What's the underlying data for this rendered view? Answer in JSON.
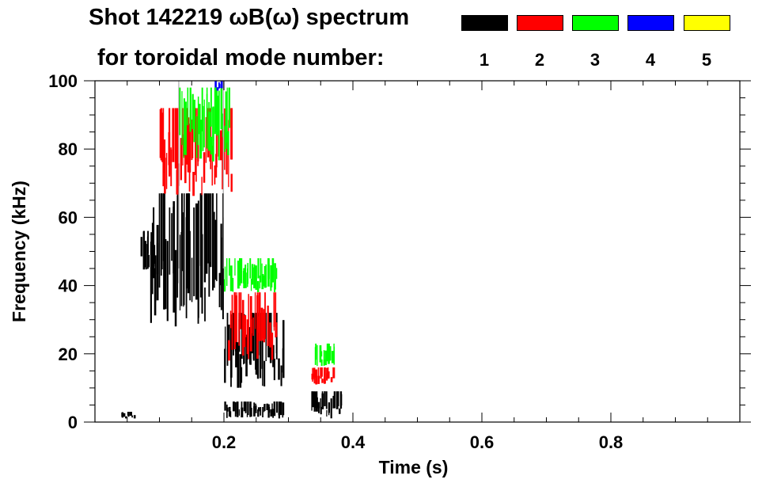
{
  "title": {
    "line1": "Shot 142219 ωB(ω) spectrum",
    "line2": "for toroidal mode number:"
  },
  "legend": [
    {
      "label": "1",
      "color": "#000000"
    },
    {
      "label": "2",
      "color": "#ff0000"
    },
    {
      "label": "3",
      "color": "#00ff00"
    },
    {
      "label": "4",
      "color": "#0000ff"
    },
    {
      "label": "5",
      "color": "#ffff00"
    }
  ],
  "chart_data": {
    "type": "heatmap",
    "title": "Shot 142219 ωB(ω) spectrum",
    "xlabel": "Time (s)",
    "ylabel": "Frequency (kHz)",
    "xlim": [
      0.0,
      1.0
    ],
    "ylim": [
      0,
      100
    ],
    "xticks": [
      {
        "value": 0.2,
        "label": "0.2"
      },
      {
        "value": 0.4,
        "label": "0.4"
      },
      {
        "value": 0.6,
        "label": "0.6"
      },
      {
        "value": 0.8,
        "label": "0.8"
      }
    ],
    "yticks": [
      {
        "value": 0,
        "label": "0"
      },
      {
        "value": 20,
        "label": "20"
      },
      {
        "value": 40,
        "label": "40"
      },
      {
        "value": 60,
        "label": "60"
      },
      {
        "value": 80,
        "label": "80"
      },
      {
        "value": 100,
        "label": "100"
      }
    ],
    "series": [
      {
        "name": "n=1",
        "color": "#000000",
        "regions": [
          {
            "t0": 0.085,
            "t1": 0.2,
            "f0": 28,
            "f1": 67
          },
          {
            "t0": 0.07,
            "t1": 0.09,
            "f0": 44,
            "f1": 56
          },
          {
            "t0": 0.2,
            "t1": 0.29,
            "f0": 10,
            "f1": 32
          },
          {
            "t0": 0.2,
            "t1": 0.29,
            "f0": 1,
            "f1": 6
          },
          {
            "t0": 0.335,
            "t1": 0.38,
            "f0": 1,
            "f1": 9
          },
          {
            "t0": 0.04,
            "t1": 0.06,
            "f0": 1,
            "f1": 3
          }
        ]
      },
      {
        "name": "n=2",
        "color": "#ff0000",
        "regions": [
          {
            "t0": 0.1,
            "t1": 0.21,
            "f0": 66,
            "f1": 92
          },
          {
            "t0": 0.205,
            "t1": 0.28,
            "f0": 18,
            "f1": 38
          },
          {
            "t0": 0.335,
            "t1": 0.37,
            "f0": 11,
            "f1": 16
          }
        ]
      },
      {
        "name": "n=3",
        "color": "#00ff00",
        "regions": [
          {
            "t0": 0.13,
            "t1": 0.21,
            "f0": 76,
            "f1": 98
          },
          {
            "t0": 0.2,
            "t1": 0.28,
            "f0": 38,
            "f1": 48
          },
          {
            "t0": 0.34,
            "t1": 0.37,
            "f0": 16,
            "f1": 23
          }
        ]
      },
      {
        "name": "n=4",
        "color": "#0000ff",
        "regions": [
          {
            "t0": 0.185,
            "t1": 0.195,
            "f0": 97,
            "f1": 100
          }
        ]
      },
      {
        "name": "n=5",
        "color": "#ffff00",
        "regions": []
      }
    ]
  }
}
